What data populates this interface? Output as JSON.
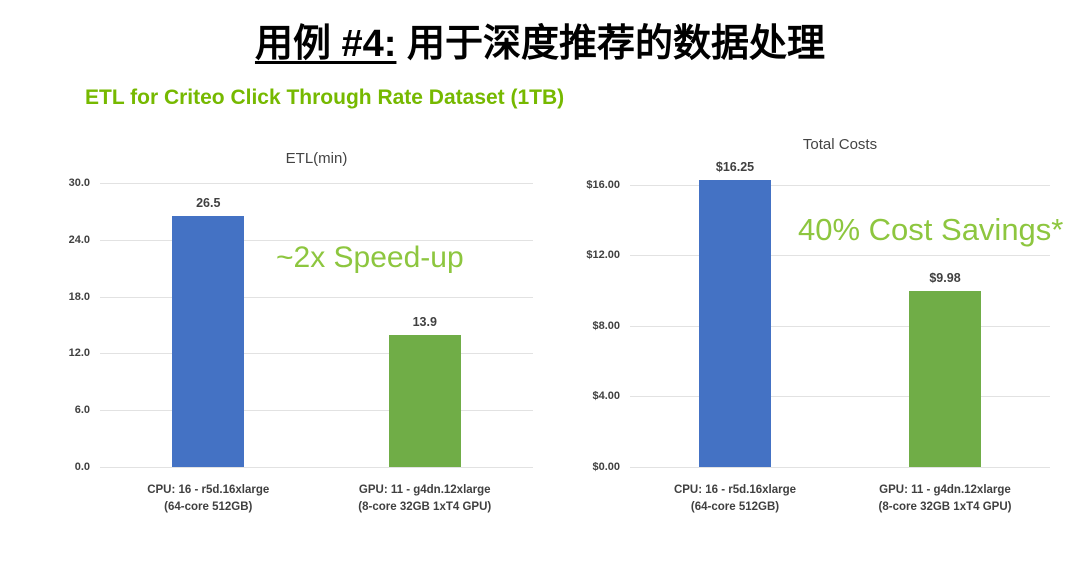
{
  "slide": {
    "title_underlined": "用例 #4:",
    "title_rest": " 用于深度推荐的数据处理",
    "subtitle": "ETL for Criteo Click Through Rate Dataset (1TB)"
  },
  "colors": {
    "cpu_bar_blue": "#4472C4",
    "gpu_bar_green": "#70AD47",
    "subtitle_green": "#76B900",
    "annotation_green": "#8DC63F",
    "gridline_gray": "#E2E2E2",
    "axis_text_gray": "#404040"
  },
  "chart_data": [
    {
      "type": "bar",
      "title": "ETL(min)",
      "categories": [
        "CPU: 16 - r5d.16xlarge\n(64-core 512GB)",
        "GPU: 11 - g4dn.12xlarge\n(8-core 32GB 1xT4 GPU)"
      ],
      "values": [
        26.5,
        13.9
      ],
      "data_labels": [
        "26.5",
        "13.9"
      ],
      "bar_colors": [
        "#4472C4",
        "#70AD47"
      ],
      "xlabel": "",
      "ylabel": "",
      "ylim": [
        0,
        30
      ],
      "yticks": [
        {
          "v": 30,
          "label": "30.0"
        },
        {
          "v": 24,
          "label": "24.0"
        },
        {
          "v": 18,
          "label": "18.0"
        },
        {
          "v": 12,
          "label": "12.0"
        },
        {
          "v": 6,
          "label": "6.0"
        },
        {
          "v": 0,
          "label": "0.0"
        }
      ],
      "grid": true,
      "legend": "none",
      "annotation": "~2x Speed-up"
    },
    {
      "type": "bar",
      "title": "Total Costs",
      "categories": [
        "CPU: 16 - r5d.16xlarge\n(64-core 512GB)",
        "GPU: 11 - g4dn.12xlarge\n(8-core 32GB 1xT4 GPU)"
      ],
      "values": [
        16.25,
        9.98
      ],
      "data_labels": [
        "$16.25",
        "$9.98"
      ],
      "bar_colors": [
        "#4472C4",
        "#70AD47"
      ],
      "xlabel": "",
      "ylabel": "",
      "ylim": [
        0,
        17
      ],
      "yticks": [
        {
          "v": 16,
          "label": "$16.00"
        },
        {
          "v": 12,
          "label": "$12.00"
        },
        {
          "v": 8,
          "label": "$8.00"
        },
        {
          "v": 4,
          "label": "$4.00"
        },
        {
          "v": 0,
          "label": "$0.00"
        }
      ],
      "grid": true,
      "legend": "none",
      "annotation": "40% Cost Savings*"
    }
  ]
}
